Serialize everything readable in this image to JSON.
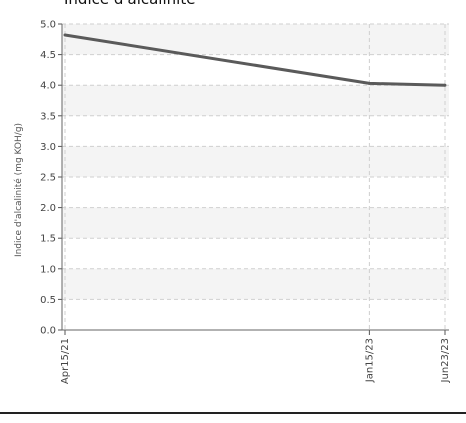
{
  "chart_data": {
    "type": "line",
    "title": "Indice d'alcalinité",
    "xlabel": "",
    "ylabel": "Indice d'alcalinité (mg KOH/g)",
    "categories": [
      "Apr15/21",
      "Jan15/23",
      "Jun23/23"
    ],
    "x_dates": [
      "2021-04-15",
      "2023-01-15",
      "2023-06-23"
    ],
    "series": [
      {
        "values": [
          4.82,
          4.03,
          4.0
        ],
        "color": "#5a5a5a"
      }
    ],
    "ylim": [
      0,
      5
    ],
    "yticks": [
      "0.0",
      "0.5",
      "1.0",
      "1.5",
      "2.0",
      "2.5",
      "3.0",
      "3.5",
      "4.0",
      "4.5",
      "5.0"
    ],
    "grid": true,
    "legend": "none"
  }
}
